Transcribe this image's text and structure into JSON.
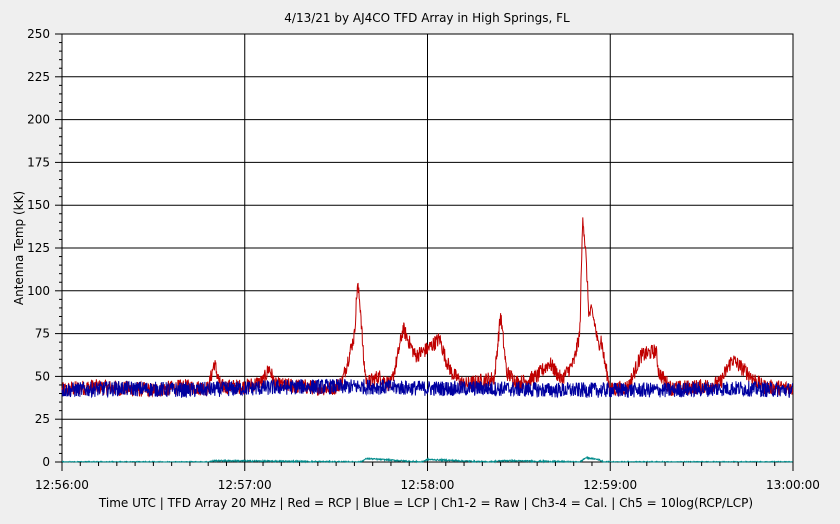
{
  "chart_data": {
    "type": "line",
    "title": "4/13/21  by  AJ4CO TFD Array  in  High Springs, FL",
    "xlabel": "Time UTC | TFD Array 20 MHz | Red = RCP | Blue = LCP | Ch1-2 = Raw | Ch3-4 = Cal. | Ch5 = 10log(RCP/LCP)",
    "ylabel": "Antenna Temp (kK)",
    "ylim": [
      0,
      250
    ],
    "yticks": [
      0,
      25,
      50,
      75,
      100,
      125,
      150,
      175,
      200,
      225,
      250
    ],
    "xticks": [
      "12:56:00",
      "12:57:00",
      "12:58:00",
      "12:59:00",
      "13:00:00"
    ],
    "xlim_seconds": [
      0,
      240
    ],
    "grid": true,
    "colors": {
      "rcp": "#c00000",
      "lcp": "#0000a0",
      "ratio": "#008b8b",
      "bg": "#efefef",
      "plot": "#ffffff"
    },
    "series": [
      {
        "name": "Red = RCP",
        "color": "#c00000",
        "x": [
          0,
          10,
          20,
          30,
          40,
          48,
          50,
          52,
          60,
          66,
          68,
          70,
          80,
          88,
          90,
          92,
          96,
          97,
          98,
          99,
          100,
          102,
          104,
          108,
          110,
          112,
          116,
          120,
          124,
          126,
          128,
          132,
          142,
          144,
          146,
          150,
          156,
          160,
          164,
          168,
          170,
          171,
          172,
          173,
          174,
          175,
          176,
          177,
          178,
          180,
          186,
          190,
          195,
          196,
          200,
          210,
          216,
          220,
          230,
          240
        ],
        "values": [
          42,
          44,
          43,
          42,
          44,
          43,
          58,
          44,
          44,
          47,
          55,
          45,
          44,
          43,
          44,
          47,
          74,
          104,
          90,
          60,
          46,
          48,
          50,
          45,
          60,
          78,
          62,
          66,
          72,
          60,
          52,
          45,
          49,
          86,
          52,
          46,
          50,
          58,
          48,
          58,
          75,
          145,
          120,
          86,
          88,
          80,
          68,
          72,
          60,
          42,
          44,
          62,
          65,
          52,
          43,
          44,
          46,
          60,
          44,
          43
        ]
      },
      {
        "name": "Blue = LCP",
        "color": "#0000a0",
        "x": [
          0,
          20,
          40,
          60,
          80,
          100,
          120,
          140,
          160,
          180,
          200,
          220,
          240
        ],
        "values": [
          42,
          43,
          42,
          43,
          44,
          44,
          43,
          43,
          42,
          42,
          42,
          43,
          42
        ]
      },
      {
        "name": "Ch5 = 10log(RCP/LCP)",
        "color": "#008b8b",
        "x": [
          0,
          48,
          50,
          98,
          100,
          118,
          120,
          140,
          145,
          170,
          172,
          176,
          178,
          240
        ],
        "values": [
          0,
          0,
          0.8,
          0,
          2,
          0,
          1.5,
          0,
          0.8,
          0,
          2.5,
          1.5,
          0,
          0
        ]
      }
    ]
  }
}
